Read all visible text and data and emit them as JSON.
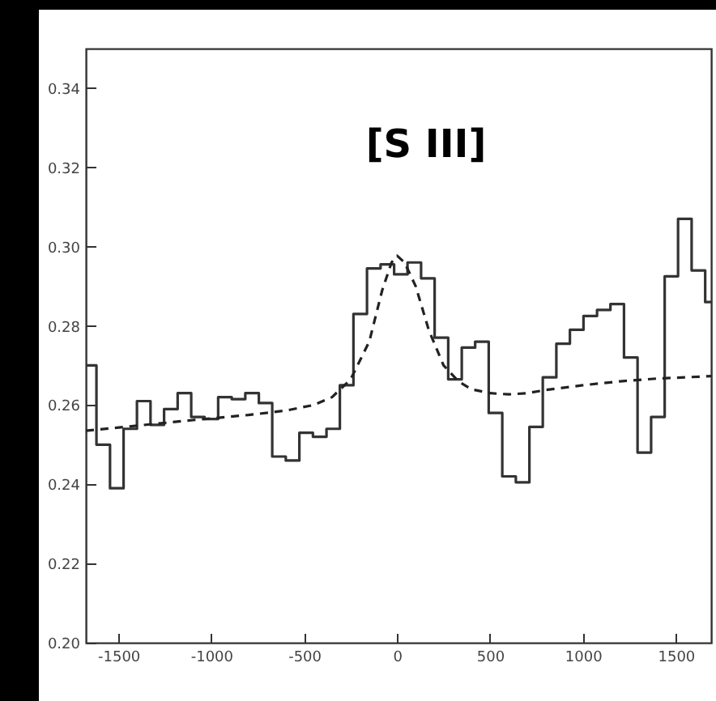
{
  "chart_data": {
    "type": "step",
    "annotations": [
      "[S III]"
    ],
    "xlim": [
      -1675,
      1690
    ],
    "ylim": [
      0.2,
      0.35
    ],
    "xticks": [
      -1500,
      -1000,
      -500,
      0,
      500,
      1000,
      1500
    ],
    "yticks": [
      {
        "value": 0.2,
        "label": "0.20"
      },
      {
        "value": 0.22,
        "label": "0.22"
      },
      {
        "value": 0.24,
        "label": "0.24"
      },
      {
        "value": 0.26,
        "label": "0.26"
      },
      {
        "value": 0.28,
        "label": "0.28"
      },
      {
        "value": 0.3,
        "label": "0.30"
      },
      {
        "value": 0.32,
        "label": "0.32"
      },
      {
        "value": 0.34,
        "label": "0.34"
      }
    ],
    "grid": false,
    "marker": "none",
    "series": [
      {
        "color": "#333333",
        "line_style": "solid",
        "x": [
          -1675,
          -1618,
          -1545,
          -1472,
          -1400,
          -1327,
          -1254,
          -1181,
          -1108,
          -1036,
          -963,
          -890,
          -817,
          -744,
          -672,
          -599,
          -526,
          -453,
          -380,
          -308,
          -235,
          -162,
          -89,
          -16,
          56,
          129,
          202,
          275,
          348,
          420,
          493,
          566,
          639,
          712,
          784,
          857,
          930,
          1003,
          1076,
          1148,
          1221,
          1294,
          1367,
          1440,
          1512,
          1585,
          1658,
          1690
        ],
        "values": [
          0.27,
          0.25,
          0.239,
          0.254,
          0.261,
          0.255,
          0.259,
          0.263,
          0.257,
          0.2565,
          0.262,
          0.2615,
          0.263,
          0.2605,
          0.247,
          0.246,
          0.253,
          0.252,
          0.254,
          0.265,
          0.283,
          0.2945,
          0.2955,
          0.293,
          0.296,
          0.292,
          0.277,
          0.2665,
          0.2745,
          0.276,
          0.258,
          0.242,
          0.2405,
          0.2545,
          0.267,
          0.2755,
          0.279,
          0.2825,
          0.284,
          0.2855,
          0.272,
          0.248,
          0.257,
          0.2925,
          0.307,
          0.294,
          0.286,
          0.286
        ]
      },
      {
        "type": "line",
        "color": "#222222",
        "line_style": "dashed",
        "x": [
          -1675,
          -1400,
          -1100,
          -800,
          -600,
          -450,
          -350,
          -250,
          -150,
          -80,
          -30,
          0,
          40,
          100,
          170,
          250,
          330,
          400,
          500,
          600,
          700,
          800,
          1000,
          1200,
          1400,
          1690
        ],
        "values": [
          0.2535,
          0.2548,
          0.2562,
          0.2575,
          0.2586,
          0.26,
          0.262,
          0.2665,
          0.276,
          0.289,
          0.296,
          0.2977,
          0.296,
          0.29,
          0.279,
          0.27,
          0.266,
          0.264,
          0.263,
          0.2627,
          0.263,
          0.2638,
          0.265,
          0.266,
          0.2667,
          0.2673
        ]
      }
    ]
  }
}
